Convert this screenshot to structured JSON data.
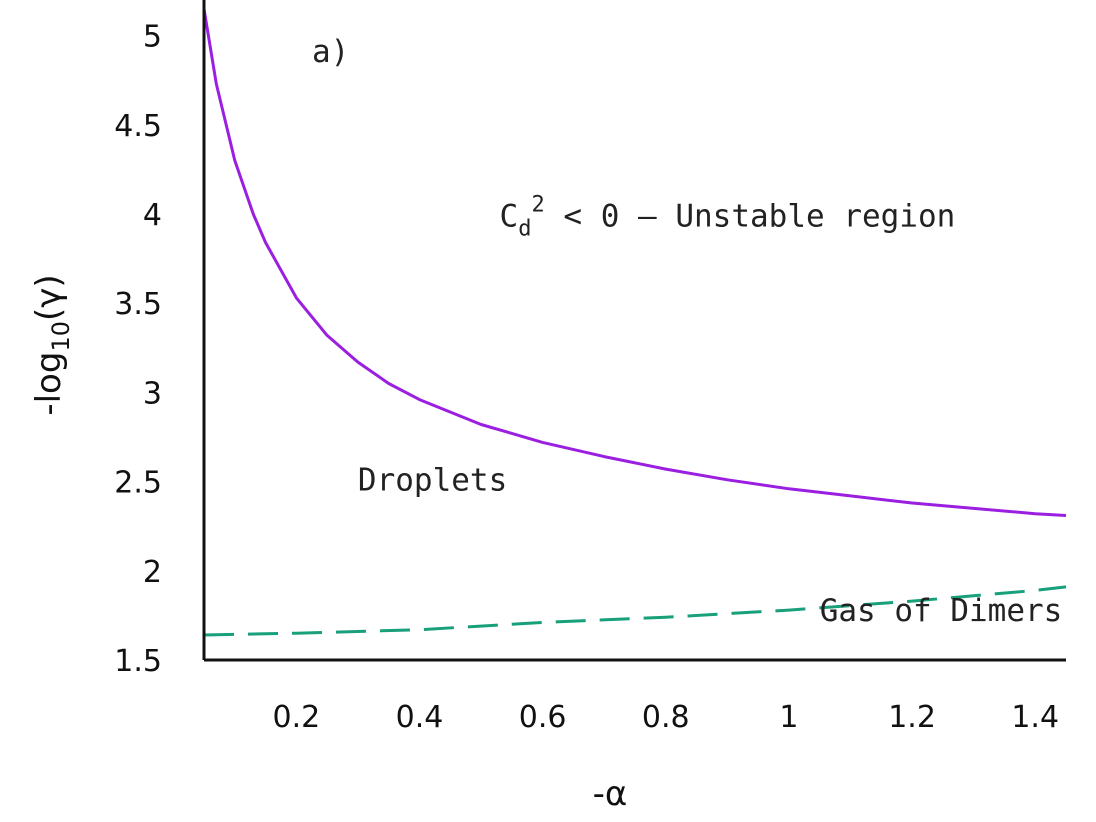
{
  "chart_data": {
    "type": "line",
    "panel_label": "a)",
    "xlabel": "-α",
    "ylabel": {
      "prefix": "-log",
      "sub": "10",
      "suffix": "(γ)"
    },
    "xlim": [
      0.05,
      1.45
    ],
    "ylim": [
      1.5,
      5.2
    ],
    "x_ticks": [
      0.2,
      0.4,
      0.6,
      0.8,
      1,
      1.2,
      1.4
    ],
    "x_tick_labels": [
      "0.2",
      "0.4",
      "0.6",
      "0.8",
      "1",
      "1.2",
      "1.4"
    ],
    "y_ticks": [
      1.5,
      2,
      2.5,
      3,
      3.5,
      4,
      4.5,
      5
    ],
    "y_tick_labels": [
      "1.5",
      "2",
      "2.5",
      "3",
      "3.5",
      "4",
      "4.5",
      "5"
    ],
    "grid": false,
    "series": [
      {
        "style": "solid",
        "color": "#9b1fe0",
        "x": [
          0.05,
          0.07,
          0.1,
          0.13,
          0.15,
          0.2,
          0.25,
          0.3,
          0.35,
          0.4,
          0.5,
          0.6,
          0.7,
          0.8,
          0.9,
          1.0,
          1.1,
          1.2,
          1.3,
          1.4,
          1.45
        ],
        "y": [
          5.15,
          4.73,
          4.3,
          4.0,
          3.84,
          3.53,
          3.32,
          3.17,
          3.05,
          2.96,
          2.82,
          2.72,
          2.64,
          2.57,
          2.51,
          2.46,
          2.42,
          2.38,
          2.35,
          2.32,
          2.31
        ]
      },
      {
        "style": "dashed",
        "color": "#17a07a",
        "x": [
          0.05,
          0.2,
          0.4,
          0.6,
          0.8,
          1.0,
          1.2,
          1.4,
          1.45
        ],
        "y": [
          1.64,
          1.65,
          1.67,
          1.71,
          1.74,
          1.78,
          1.83,
          1.89,
          1.91
        ]
      }
    ],
    "annotations": [
      {
        "text_main": "C",
        "text_sub": "d",
        "text_sup": "2",
        "text_rest": " < 0 – Unstable region",
        "x": 0.53,
        "y": 3.93
      },
      {
        "text": "Droplets",
        "x": 0.3,
        "y": 2.45
      },
      {
        "text": "Gas of Dimers",
        "x": 1.05,
        "y": 1.72
      }
    ]
  }
}
